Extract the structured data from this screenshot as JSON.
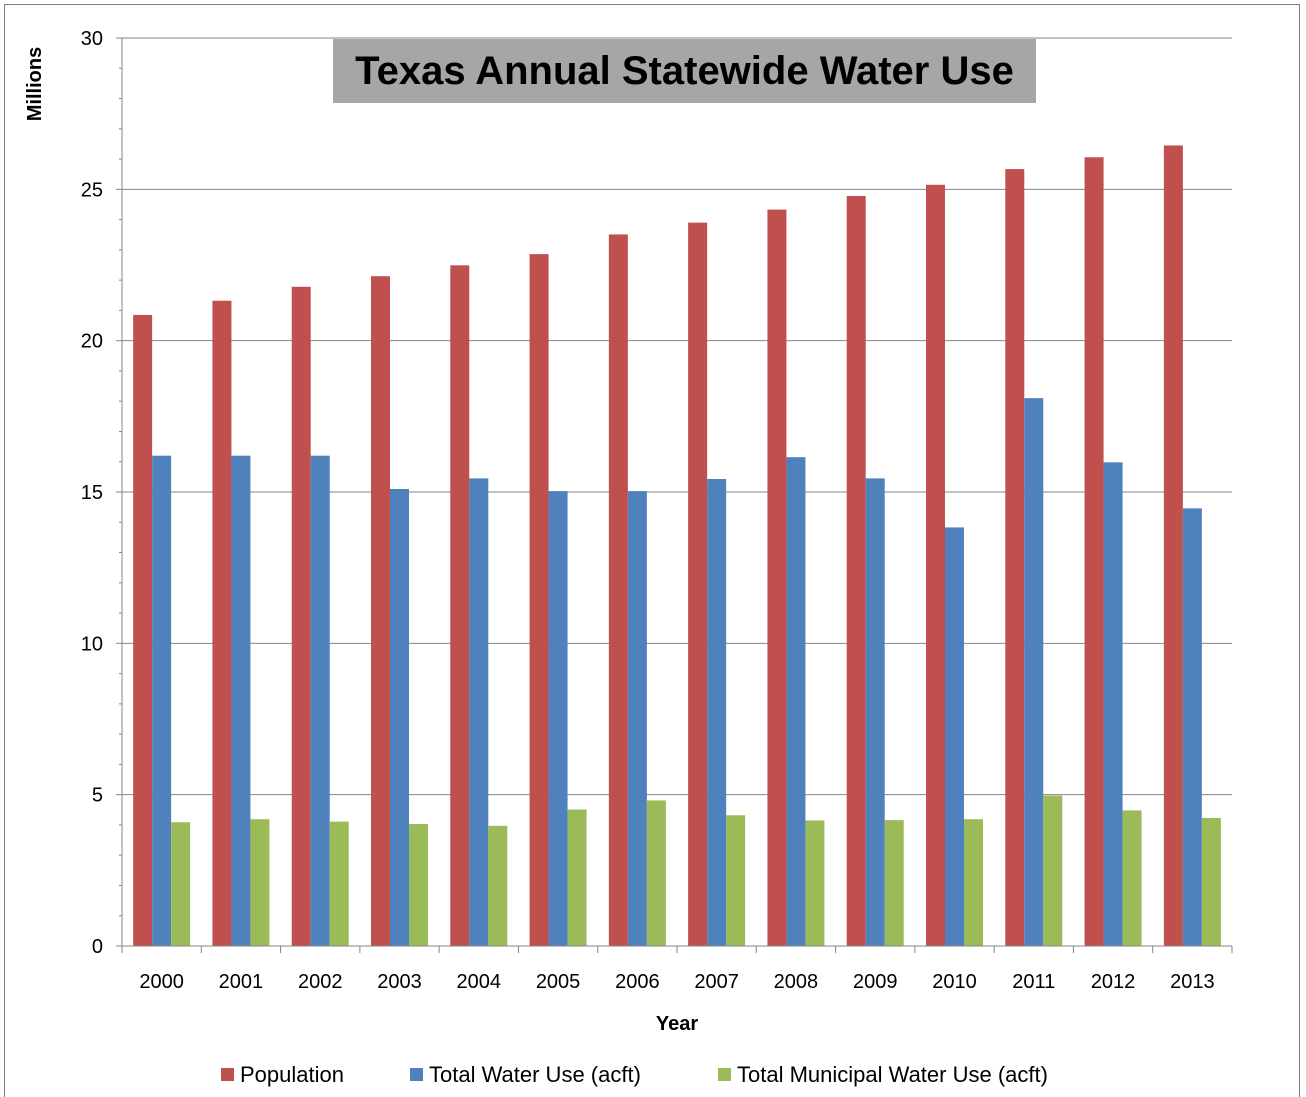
{
  "chart_data": {
    "type": "bar",
    "title": "Texas Annual Statewide Water Use",
    "xlabel": "Year",
    "ylabel": "Millions",
    "ylim": [
      0,
      30
    ],
    "yticks": [
      0,
      5,
      10,
      15,
      20,
      25,
      30
    ],
    "grid": true,
    "legend_position": "bottom",
    "categories": [
      "2000",
      "2001",
      "2002",
      "2003",
      "2004",
      "2005",
      "2006",
      "2007",
      "2008",
      "2009",
      "2010",
      "2011",
      "2012",
      "2013"
    ],
    "series": [
      {
        "name": "Population",
        "color": "#c0504d",
        "values": [
          20.85,
          21.32,
          21.78,
          22.13,
          22.49,
          22.86,
          23.51,
          23.9,
          24.33,
          24.78,
          25.15,
          25.67,
          26.06,
          26.45
        ]
      },
      {
        "name": "Total Water Use (acft)",
        "color": "#4f81bd",
        "values": [
          16.2,
          16.2,
          16.2,
          15.1,
          15.45,
          15.03,
          15.03,
          15.43,
          16.15,
          15.45,
          13.83,
          18.1,
          15.98,
          14.46
        ]
      },
      {
        "name": "Total Municipal Water Use (acft)",
        "color": "#9bbb59",
        "values": [
          4.09,
          4.19,
          4.11,
          4.03,
          3.97,
          4.51,
          4.81,
          4.32,
          4.15,
          4.16,
          4.19,
          4.97,
          4.48,
          4.23
        ]
      }
    ]
  }
}
